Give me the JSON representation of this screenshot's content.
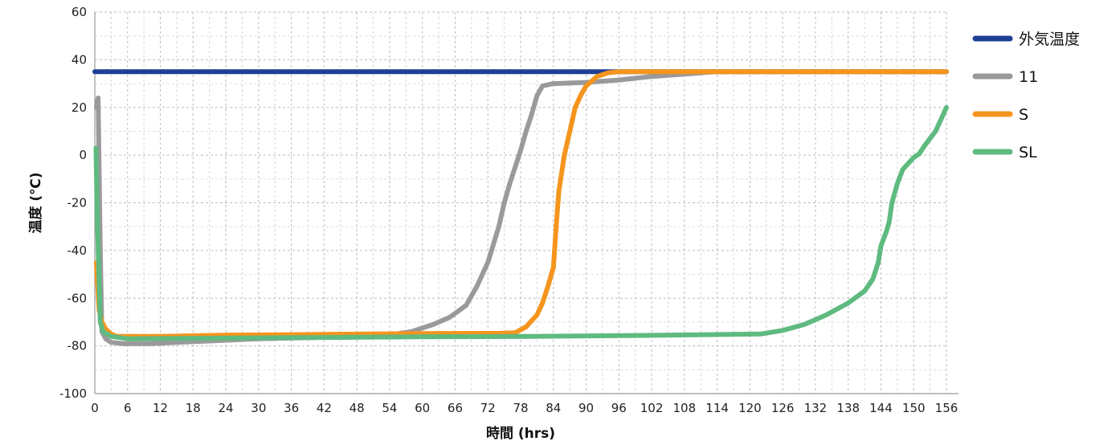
{
  "chart_data": {
    "type": "line",
    "xlabel": "時間 (hrs)",
    "ylabel": "温度 (℃)",
    "xlim": [
      0,
      156
    ],
    "ylim": [
      -100,
      60
    ],
    "xticks": [
      0,
      6,
      12,
      18,
      24,
      30,
      36,
      42,
      48,
      54,
      60,
      66,
      72,
      78,
      84,
      90,
      96,
      102,
      108,
      114,
      120,
      126,
      132,
      138,
      144,
      150,
      156
    ],
    "yticks": [
      -100,
      -80,
      -60,
      -40,
      -20,
      0,
      20,
      40,
      60
    ],
    "grid": true,
    "legend_position": "right",
    "series": [
      {
        "name": "外気温度",
        "color": "#1f3f96",
        "points": [
          [
            0,
            35
          ],
          [
            156,
            35
          ]
        ]
      },
      {
        "name": "11",
        "color": "#9a9a9c",
        "points": [
          [
            0.3,
            20
          ],
          [
            0.6,
            24
          ],
          [
            1,
            -40
          ],
          [
            1.3,
            -74
          ],
          [
            2,
            -77
          ],
          [
            3,
            -78.5
          ],
          [
            5,
            -79
          ],
          [
            10,
            -79
          ],
          [
            20,
            -78
          ],
          [
            30,
            -77
          ],
          [
            40,
            -76.5
          ],
          [
            50,
            -75.5
          ],
          [
            55,
            -75
          ],
          [
            58,
            -74
          ],
          [
            62,
            -71
          ],
          [
            65,
            -68
          ],
          [
            68,
            -63
          ],
          [
            70,
            -55
          ],
          [
            72,
            -45
          ],
          [
            74,
            -30
          ],
          [
            75,
            -20
          ],
          [
            76,
            -12
          ],
          [
            77,
            -5
          ],
          [
            78,
            2
          ],
          [
            79,
            10
          ],
          [
            80,
            17
          ],
          [
            81,
            25
          ],
          [
            82,
            29
          ],
          [
            84,
            30
          ],
          [
            90,
            30.5
          ],
          [
            96,
            31.5
          ],
          [
            102,
            33
          ],
          [
            108,
            34
          ],
          [
            114,
            35
          ],
          [
            156,
            35
          ]
        ]
      },
      {
        "name": "S",
        "color": "#f5951e",
        "points": [
          [
            0.3,
            -45
          ],
          [
            0.8,
            -65
          ],
          [
            1.3,
            -70
          ],
          [
            2,
            -73
          ],
          [
            3,
            -75
          ],
          [
            4,
            -76
          ],
          [
            6,
            -76
          ],
          [
            12,
            -76
          ],
          [
            24,
            -75.5
          ],
          [
            40,
            -75.2
          ],
          [
            60,
            -74.8
          ],
          [
            74,
            -74.7
          ],
          [
            77,
            -74.5
          ],
          [
            79,
            -72
          ],
          [
            81,
            -67
          ],
          [
            82,
            -62
          ],
          [
            83,
            -55
          ],
          [
            84,
            -47
          ],
          [
            84.5,
            -30
          ],
          [
            85,
            -15
          ],
          [
            86,
            0
          ],
          [
            87,
            10
          ],
          [
            88,
            20
          ],
          [
            89,
            25
          ],
          [
            90,
            29
          ],
          [
            92,
            33
          ],
          [
            94,
            34.5
          ],
          [
            96,
            35
          ],
          [
            156,
            35
          ]
        ]
      },
      {
        "name": "SL",
        "color": "#5fba80",
        "points": [
          [
            0.2,
            3
          ],
          [
            0.5,
            -30
          ],
          [
            1,
            -70
          ],
          [
            1.5,
            -74
          ],
          [
            3,
            -76
          ],
          [
            6,
            -77
          ],
          [
            20,
            -76.8
          ],
          [
            40,
            -76.5
          ],
          [
            60,
            -76.2
          ],
          [
            80,
            -76
          ],
          [
            100,
            -75.6
          ],
          [
            115,
            -75.2
          ],
          [
            122,
            -75
          ],
          [
            126,
            -73.5
          ],
          [
            130,
            -71
          ],
          [
            134,
            -67
          ],
          [
            138,
            -62
          ],
          [
            141,
            -57
          ],
          [
            142.5,
            -52
          ],
          [
            143.5,
            -45
          ],
          [
            144,
            -38
          ],
          [
            145,
            -32
          ],
          [
            145.5,
            -28
          ],
          [
            146,
            -20
          ],
          [
            147,
            -12
          ],
          [
            148,
            -6
          ],
          [
            150,
            -1
          ],
          [
            151,
            0.5
          ],
          [
            152,
            4
          ],
          [
            153,
            7
          ],
          [
            154,
            10
          ],
          [
            155,
            15
          ],
          [
            156,
            20
          ]
        ]
      }
    ]
  }
}
